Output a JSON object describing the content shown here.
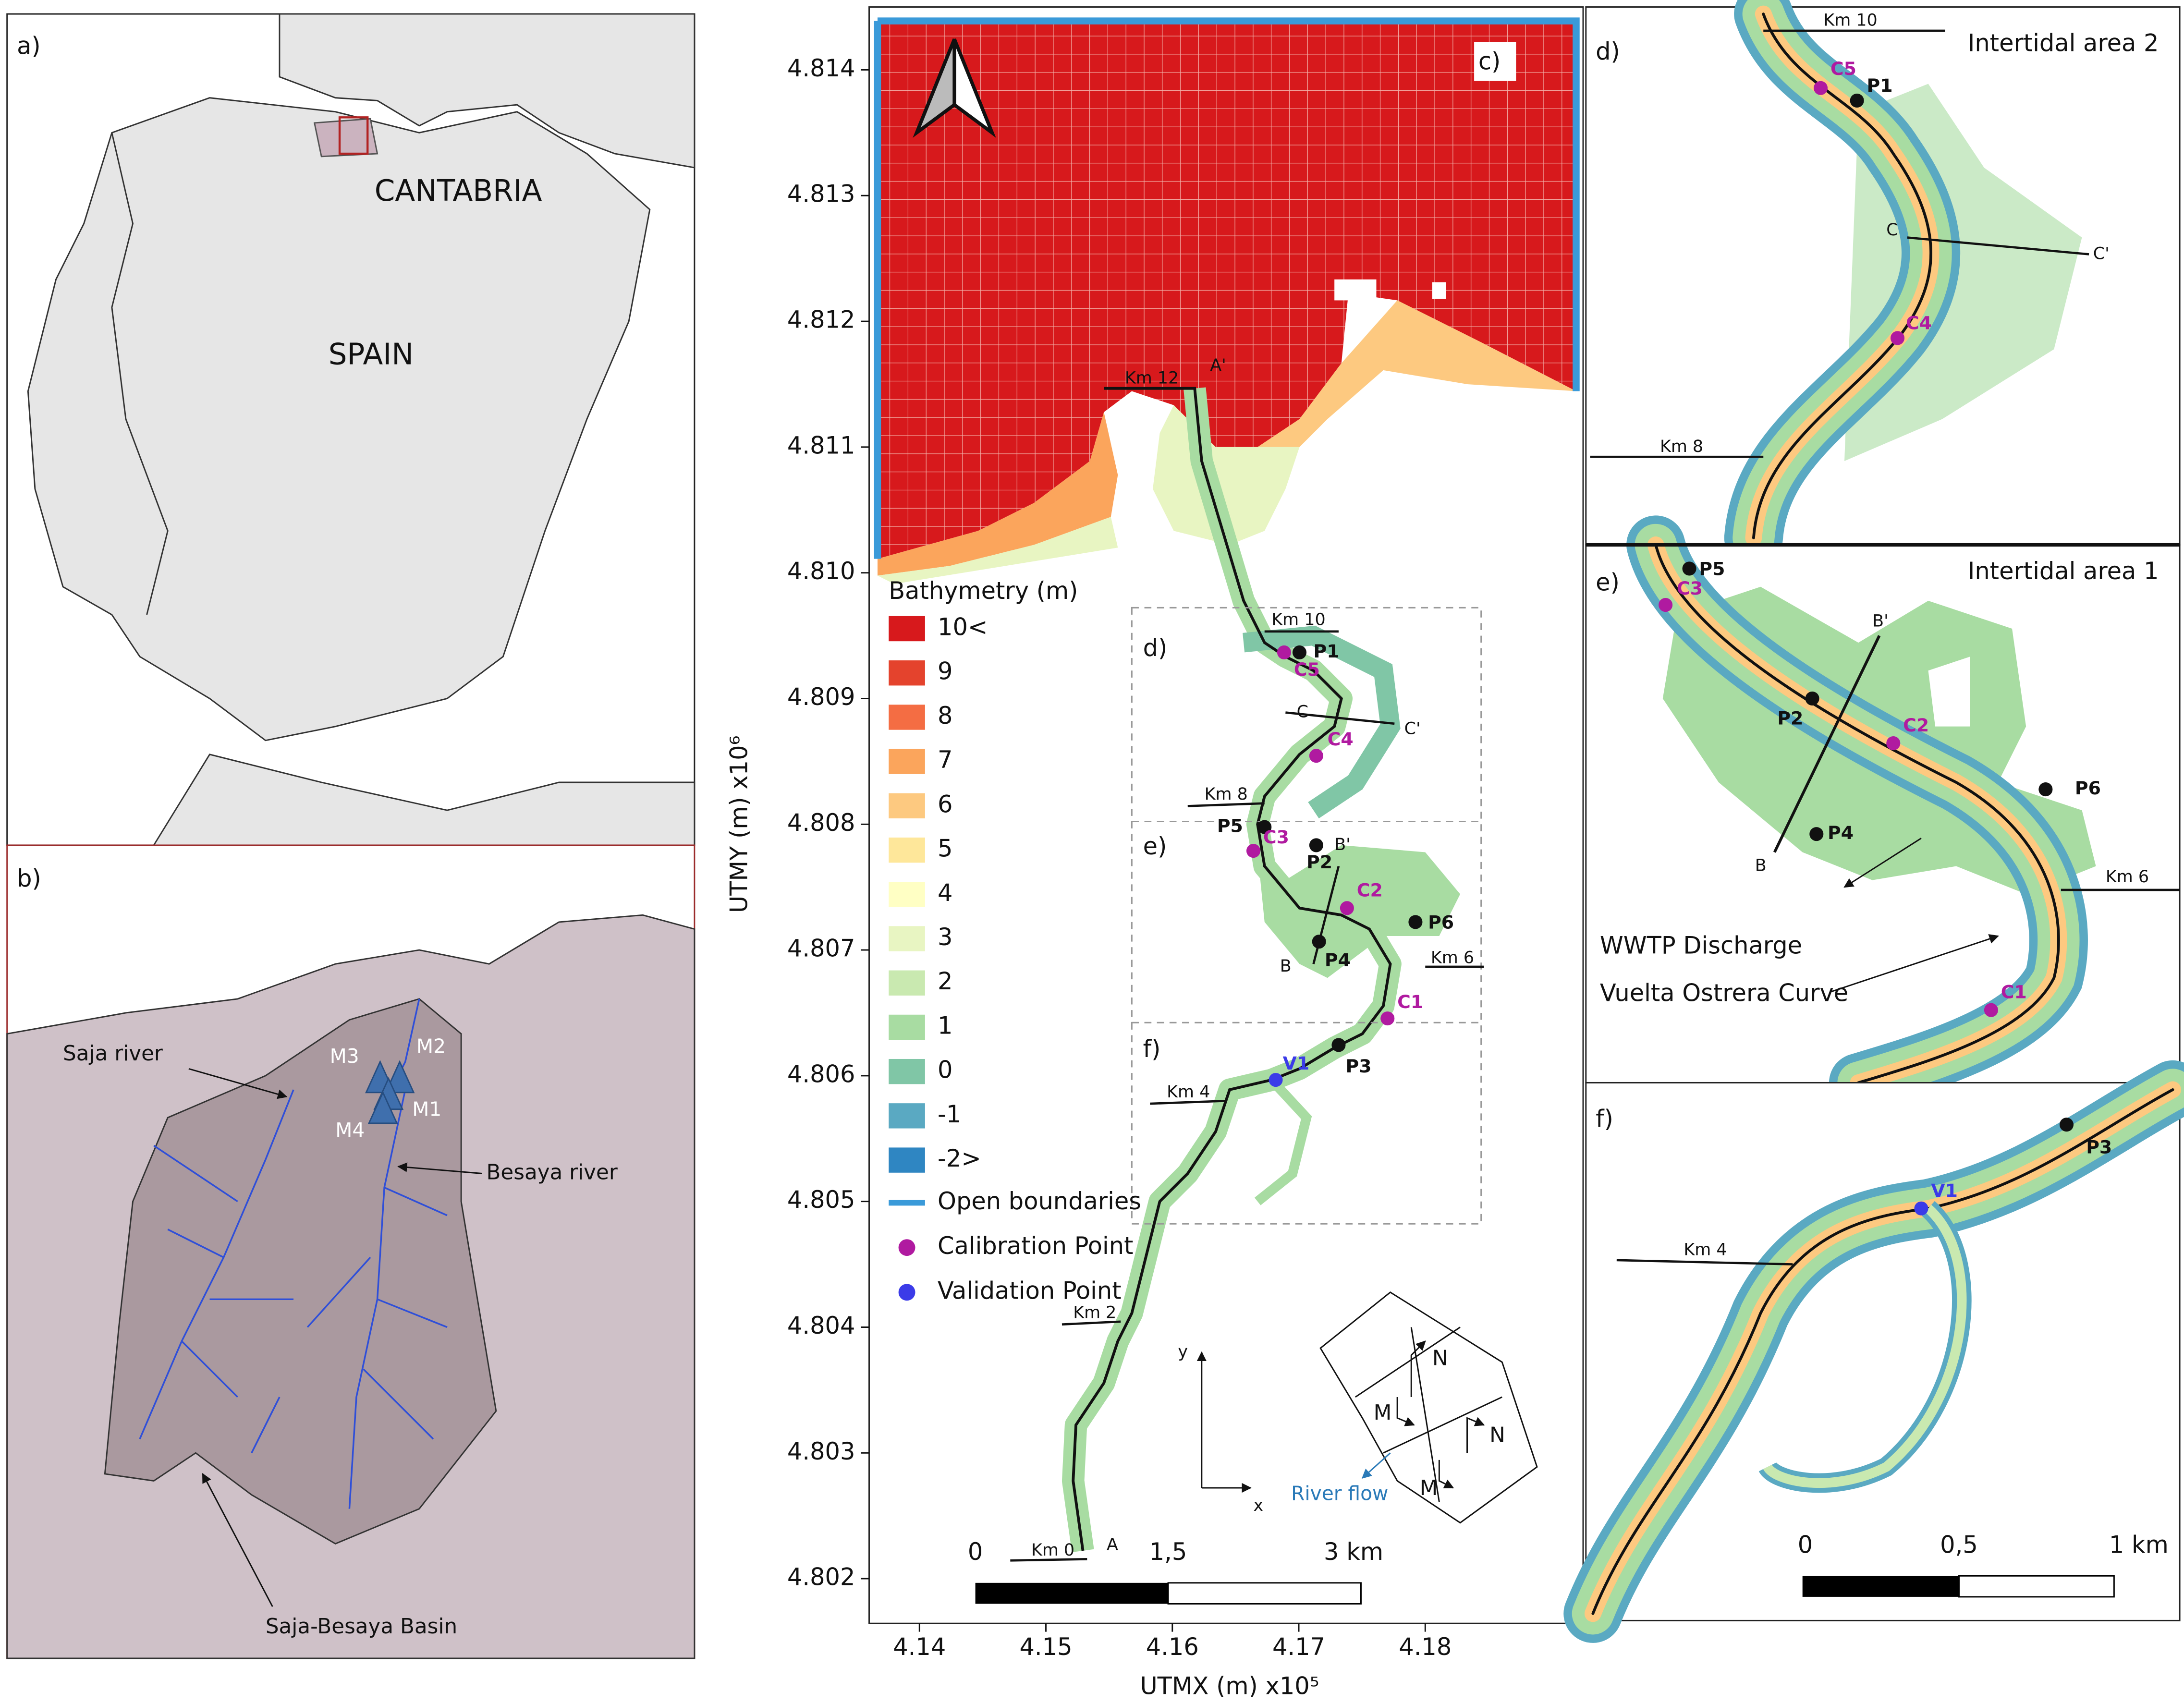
{
  "panel_a": {
    "label": "a)",
    "labels": [
      "CANTABRIA",
      "SPAIN"
    ]
  },
  "panel_b": {
    "label": "b)",
    "labels": [
      "Saja river",
      "Besaya river",
      "Saja-Besaya Basin"
    ],
    "stations": [
      "M1",
      "M2",
      "M3",
      "M4"
    ]
  },
  "panel_c": {
    "label": "c)",
    "x_axis_label": "UTMX (m) x10⁵",
    "y_axis_label": "UTMY (m) x10⁶",
    "xticks": [
      "4.14",
      "4.15",
      "4.16",
      "4.17",
      "4.18"
    ],
    "yticks": [
      "4.802",
      "4.803",
      "4.804",
      "4.805",
      "4.806",
      "4.807",
      "4.808",
      "4.809",
      "4.810",
      "4.811",
      "4.812",
      "4.813",
      "4.814"
    ],
    "legend_title": "Bathymetry (m)",
    "legend": [
      {
        "label": "10<",
        "color": "#d7191c"
      },
      {
        "label": "9",
        "color": "#e4432d"
      },
      {
        "label": "8",
        "color": "#f46d43"
      },
      {
        "label": "7",
        "color": "#fba55c"
      },
      {
        "label": "6",
        "color": "#fdc980"
      },
      {
        "label": "5",
        "color": "#fee79a"
      },
      {
        "label": "4",
        "color": "#ffffc4"
      },
      {
        "label": "3",
        "color": "#e8f5c2"
      },
      {
        "label": "2",
        "color": "#c9e9b0"
      },
      {
        "label": "1",
        "color": "#a8dca2"
      },
      {
        "label": "0",
        "color": "#80c6a6"
      },
      {
        "label": "-1",
        "color": "#5aa9c2"
      },
      {
        "label": "-2>",
        "color": "#2f86c2"
      }
    ],
    "legend_extra": [
      {
        "label": "Open boundaries",
        "color": "#3a9ad9"
      },
      {
        "label": "Calibration Point",
        "color": "#b01aa0"
      },
      {
        "label": "Validation Point",
        "color": "#3b3be8"
      }
    ],
    "kms": [
      "Km 12",
      "Km 10",
      "Km 8",
      "Km 6",
      "Km 4",
      "Km 2",
      "Km 0"
    ],
    "sections": [
      "A'",
      "A",
      "C",
      "C'",
      "B'",
      "B"
    ],
    "points": [
      "P1",
      "C5",
      "C4",
      "P5",
      "C3",
      "P2",
      "C2",
      "P6",
      "P4",
      "C1",
      "P3",
      "V1"
    ],
    "insets": [
      "d)",
      "e)",
      "f)"
    ],
    "scale": [
      "0",
      "1,5",
      "3 km"
    ],
    "axes": [
      "y",
      "x"
    ],
    "grid_axes": [
      "N",
      "M",
      "N",
      "M"
    ],
    "river_flow": "River flow"
  },
  "panel_d": {
    "label": "d)",
    "title": "Intertidal area 2",
    "kms": [
      "Km 10",
      "Km 8"
    ],
    "sections": [
      "C",
      "C'"
    ],
    "points": [
      "C5",
      "P1",
      "C4"
    ]
  },
  "panel_e": {
    "label": "e)",
    "title": "Intertidal area 1",
    "kms": [
      "Km 6"
    ],
    "sections": [
      "B'",
      "B"
    ],
    "points": [
      "P5",
      "C3",
      "P2",
      "C2",
      "P6",
      "P4",
      "C1"
    ],
    "annotations": [
      "WWTP Discharge",
      "Vuelta Ostrera Curve"
    ]
  },
  "panel_f": {
    "label": "f)",
    "kms": [
      "Km 4"
    ],
    "points": [
      "V1",
      "P3"
    ],
    "scale": [
      "0",
      "0,5",
      "1 km"
    ]
  }
}
